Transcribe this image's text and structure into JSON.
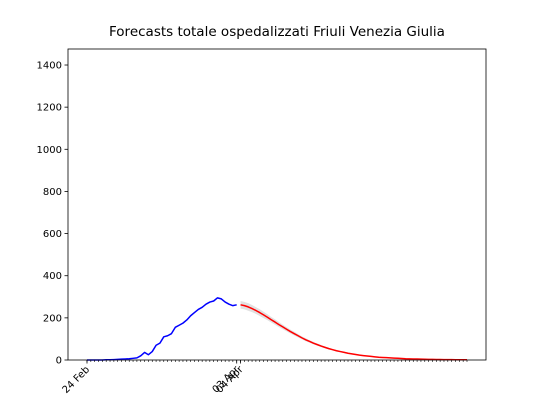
{
  "chart_data": {
    "type": "line",
    "title": "Forecasts totale ospedalizzati Friuli Venezia Giulia",
    "x": [
      0,
      1,
      2,
      3,
      4,
      5,
      6,
      7,
      8,
      9,
      10,
      11,
      12,
      13,
      14,
      15,
      16,
      17,
      18,
      19,
      20,
      21,
      22,
      23,
      24,
      25,
      26,
      27,
      28,
      29,
      30,
      31,
      32,
      33,
      34,
      35,
      36,
      37,
      38,
      39,
      40,
      41,
      42,
      43,
      44,
      45,
      46,
      47,
      48,
      49,
      50,
      51,
      52,
      53,
      54,
      55,
      56,
      57,
      58,
      59,
      60,
      61,
      62,
      63,
      64,
      65,
      66,
      67,
      68,
      69,
      70,
      71,
      72,
      73,
      74,
      75,
      76,
      77,
      78,
      79,
      80,
      81,
      82,
      83,
      84,
      85,
      86,
      87,
      88,
      89,
      90,
      91,
      92,
      93,
      94,
      95,
      96,
      97,
      98,
      99
    ],
    "xlim": [
      -4.95,
      103.95
    ],
    "xticks": [
      {
        "value": 0,
        "label": "24 Feb"
      },
      {
        "value": 39,
        "label": "03 Apr"
      },
      {
        "value": 40,
        "label": "04 Apr"
      }
    ],
    "ylim": [
      0,
      1476
    ],
    "yticks": [
      0,
      200,
      400,
      600,
      800,
      1000,
      1200,
      1400
    ],
    "series": [
      {
        "color": "#0000ff",
        "values": [
          0,
          0,
          0,
          0,
          0,
          1,
          1,
          2,
          3,
          4,
          5,
          6,
          8,
          10,
          20,
          36,
          25,
          40,
          70,
          80,
          110,
          115,
          125,
          155,
          165,
          175,
          190,
          210,
          225,
          240,
          250,
          265,
          275,
          280,
          295,
          290,
          275,
          265,
          258,
          262,
          null,
          null,
          null,
          null,
          null,
          null,
          null,
          null,
          null,
          null,
          null,
          null,
          null,
          null,
          null,
          null,
          null,
          null,
          null,
          null,
          null,
          null,
          null,
          null,
          null,
          null,
          null,
          null,
          null,
          null,
          null,
          null,
          null,
          null,
          null,
          null,
          null,
          null,
          null,
          null,
          null,
          null,
          null,
          null,
          null,
          null,
          null,
          null,
          null,
          null,
          null,
          null,
          null,
          null,
          null,
          null,
          null,
          null,
          null,
          null
        ]
      },
      {
        "color": "#ff0000",
        "values": [
          null,
          null,
          null,
          null,
          null,
          null,
          null,
          null,
          null,
          null,
          null,
          null,
          null,
          null,
          null,
          null,
          null,
          null,
          null,
          null,
          null,
          null,
          null,
          null,
          null,
          null,
          null,
          null,
          null,
          null,
          null,
          null,
          null,
          null,
          null,
          null,
          null,
          null,
          null,
          null,
          262,
          258,
          252,
          244,
          235,
          225,
          214,
          203,
          191,
          180,
          168,
          157,
          146,
          135,
          125,
          115,
          105,
          96,
          88,
          80,
          73,
          66,
          60,
          54,
          49,
          44,
          40,
          36,
          32,
          29,
          26,
          23,
          21,
          19,
          17,
          15,
          13,
          12,
          11,
          10,
          9,
          8,
          7,
          6,
          5.5,
          5,
          4.5,
          4,
          3.5,
          3,
          2.7,
          2.4,
          2.1,
          1.9,
          1.7,
          1.5,
          1.3,
          1.2,
          1.1,
          1
        ]
      }
    ],
    "band": {
      "color": "#d9d9d9",
      "upper": [
        null,
        null,
        null,
        null,
        null,
        null,
        null,
        null,
        null,
        null,
        null,
        null,
        null,
        null,
        null,
        null,
        null,
        null,
        null,
        null,
        null,
        null,
        null,
        null,
        null,
        null,
        null,
        null,
        null,
        null,
        null,
        null,
        null,
        null,
        null,
        null,
        null,
        null,
        null,
        null,
        280,
        276,
        270,
        261,
        251,
        241,
        229,
        217,
        204,
        193,
        180,
        168,
        156,
        144,
        134,
        123,
        112,
        103,
        94,
        86,
        78,
        71,
        64,
        58,
        52,
        47,
        43,
        39,
        34,
        31,
        28,
        25,
        22,
        20,
        18,
        16,
        14,
        13,
        12,
        11,
        10,
        9,
        7.5,
        6.4,
        5.9,
        5.4,
        4.8,
        4.3,
        3.7,
        3.2,
        2.9,
        2.6,
        2.2,
        2,
        1.8,
        1.6,
        1.4,
        1.3,
        1.2,
        1.1
      ],
      "lower": [
        null,
        null,
        null,
        null,
        null,
        null,
        null,
        null,
        null,
        null,
        null,
        null,
        null,
        null,
        null,
        null,
        null,
        null,
        null,
        null,
        null,
        null,
        null,
        null,
        null,
        null,
        null,
        null,
        null,
        null,
        null,
        null,
        null,
        null,
        null,
        null,
        null,
        null,
        null,
        null,
        244,
        240,
        234,
        227,
        219,
        209,
        199,
        189,
        178,
        167,
        156,
        146,
        136,
        126,
        116,
        107,
        98,
        89,
        82,
        74,
        68,
        61,
        56,
        50,
        46,
        41,
        37,
        33,
        30,
        27,
        24,
        21,
        20,
        18,
        16,
        14,
        12,
        11,
        10,
        9.3,
        8.4,
        7.4,
        6.5,
        5.6,
        5.1,
        4.7,
        4.2,
        3.7,
        3.3,
        2.8,
        2.5,
        2.2,
        2,
        1.8,
        1.6,
        1.4,
        1.2,
        1.1,
        1,
        0.9
      ]
    }
  }
}
